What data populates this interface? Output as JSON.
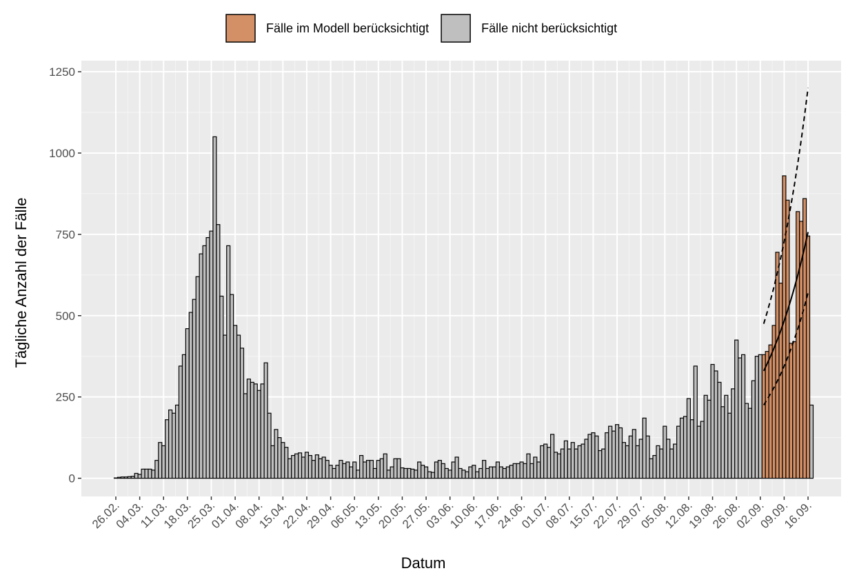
{
  "chart_data": {
    "type": "bar",
    "legend_position": "top",
    "xlabel": "Datum",
    "ylabel": "Tägliche Anzahl der Fälle",
    "grid": true,
    "ylim": [
      -56,
      1284
    ],
    "yticks": [
      0,
      250,
      500,
      750,
      1000,
      1250
    ],
    "categories": [
      "26.02.",
      null,
      null,
      null,
      null,
      null,
      null,
      "04.03.",
      null,
      null,
      null,
      null,
      null,
      null,
      "11.03.",
      null,
      null,
      null,
      null,
      null,
      null,
      "18.03.",
      null,
      null,
      null,
      null,
      null,
      null,
      "25.03.",
      null,
      null,
      null,
      null,
      null,
      null,
      "01.04.",
      null,
      null,
      null,
      null,
      null,
      null,
      "08.04.",
      null,
      null,
      null,
      null,
      null,
      null,
      "15.04.",
      null,
      null,
      null,
      null,
      null,
      null,
      "22.04.",
      null,
      null,
      null,
      null,
      null,
      null,
      "29.04.",
      null,
      null,
      null,
      null,
      null,
      null,
      "06.05.",
      null,
      null,
      null,
      null,
      null,
      null,
      "13.05.",
      null,
      null,
      null,
      null,
      null,
      null,
      "20.05.",
      null,
      null,
      null,
      null,
      null,
      null,
      "27.05.",
      null,
      null,
      null,
      null,
      null,
      null,
      "03.06.",
      null,
      null,
      null,
      null,
      null,
      null,
      "10.06.",
      null,
      null,
      null,
      null,
      null,
      null,
      "17.06.",
      null,
      null,
      null,
      null,
      null,
      null,
      "24.06.",
      null,
      null,
      null,
      null,
      null,
      null,
      "01.07.",
      null,
      null,
      null,
      null,
      null,
      null,
      "08.07.",
      null,
      null,
      null,
      null,
      null,
      null,
      "15.07.",
      null,
      null,
      null,
      null,
      null,
      null,
      "22.07.",
      null,
      null,
      null,
      null,
      null,
      null,
      "29.07.",
      null,
      null,
      null,
      null,
      null,
      null,
      "05.08.",
      null,
      null,
      null,
      null,
      null,
      null,
      "12.08.",
      null,
      null,
      null,
      null,
      null,
      null,
      "19.08.",
      null,
      null,
      null,
      null,
      null,
      null,
      "26.08.",
      null,
      null,
      null,
      null,
      null,
      null,
      "02.09.",
      null,
      null,
      null,
      null,
      null,
      null,
      "09.09.",
      null,
      null,
      null,
      null,
      null,
      null,
      "16.09.",
      null
    ],
    "series": [
      {
        "name": "Fälle im Modell berücksichtigt",
        "color": "#d38f65",
        "values": [
          null,
          null,
          null,
          null,
          null,
          null,
          null,
          null,
          null,
          null,
          null,
          null,
          null,
          null,
          null,
          null,
          null,
          null,
          null,
          null,
          null,
          null,
          null,
          null,
          null,
          null,
          null,
          null,
          null,
          null,
          null,
          null,
          null,
          null,
          null,
          null,
          null,
          null,
          null,
          null,
          null,
          null,
          null,
          null,
          null,
          null,
          null,
          null,
          null,
          null,
          null,
          null,
          null,
          null,
          null,
          null,
          null,
          null,
          null,
          null,
          null,
          null,
          null,
          null,
          null,
          null,
          null,
          null,
          null,
          null,
          null,
          null,
          null,
          null,
          null,
          null,
          null,
          null,
          null,
          null,
          null,
          null,
          null,
          null,
          null,
          null,
          null,
          null,
          null,
          null,
          null,
          null,
          null,
          null,
          null,
          null,
          null,
          null,
          null,
          null,
          null,
          null,
          null,
          null,
          null,
          null,
          null,
          null,
          null,
          null,
          null,
          null,
          null,
          null,
          null,
          null,
          null,
          null,
          null,
          null,
          null,
          null,
          null,
          null,
          null,
          null,
          null,
          null,
          null,
          null,
          null,
          null,
          null,
          null,
          null,
          null,
          null,
          null,
          null,
          null,
          null,
          null,
          null,
          null,
          null,
          null,
          null,
          null,
          null,
          null,
          null,
          null,
          null,
          null,
          null,
          null,
          null,
          null,
          null,
          null,
          null,
          null,
          null,
          null,
          null,
          null,
          null,
          null,
          null,
          null,
          null,
          null,
          null,
          null,
          null,
          null,
          null,
          null,
          null,
          null,
          null,
          null,
          null,
          null,
          null,
          null,
          null,
          null,
          null,
          null,
          380,
          390,
          410,
          470,
          695,
          600,
          930,
          855,
          415,
          420,
          820,
          790,
          860,
          745,
          null
        ]
      },
      {
        "name": "Fälle nicht berücksichtigt",
        "color": "#bfbfbf",
        "values": [
          1,
          3,
          4,
          4,
          5,
          6,
          15,
          12,
          28,
          28,
          28,
          25,
          55,
          110,
          100,
          180,
          210,
          200,
          225,
          345,
          380,
          460,
          510,
          550,
          620,
          690,
          715,
          740,
          760,
          1050,
          780,
          560,
          440,
          715,
          565,
          470,
          440,
          400,
          260,
          305,
          295,
          290,
          270,
          290,
          355,
          200,
          100,
          150,
          125,
          110,
          95,
          60,
          70,
          75,
          78,
          65,
          80,
          70,
          55,
          72,
          60,
          65,
          55,
          40,
          30,
          40,
          55,
          45,
          50,
          35,
          50,
          25,
          70,
          50,
          55,
          55,
          30,
          55,
          60,
          75,
          25,
          35,
          60,
          60,
          32,
          30,
          30,
          28,
          25,
          50,
          40,
          35,
          20,
          18,
          50,
          55,
          45,
          30,
          25,
          50,
          65,
          30,
          25,
          20,
          35,
          40,
          20,
          30,
          55,
          30,
          35,
          35,
          50,
          35,
          30,
          35,
          40,
          45,
          45,
          50,
          45,
          75,
          45,
          65,
          50,
          100,
          105,
          95,
          135,
          80,
          75,
          90,
          115,
          90,
          110,
          90,
          100,
          105,
          120,
          135,
          140,
          130,
          85,
          90,
          140,
          160,
          145,
          165,
          155,
          110,
          100,
          130,
          150,
          100,
          120,
          185,
          130,
          60,
          70,
          100,
          90,
          160,
          120,
          90,
          105,
          160,
          185,
          190,
          245,
          180,
          345,
          160,
          175,
          255,
          240,
          350,
          330,
          295,
          220,
          255,
          200,
          275,
          425,
          370,
          380,
          230,
          215,
          300,
          375,
          380,
          null,
          null,
          null,
          null,
          null,
          null,
          null,
          null,
          null,
          null,
          null,
          null,
          null,
          null,
          225
        ]
      }
    ],
    "lines": [
      {
        "style": "solid",
        "color": "#000000",
        "values": [
          null,
          null,
          null,
          null,
          null,
          null,
          null,
          null,
          null,
          null,
          null,
          null,
          null,
          null,
          null,
          null,
          null,
          null,
          null,
          null,
          null,
          null,
          null,
          null,
          null,
          null,
          null,
          null,
          null,
          null,
          null,
          null,
          null,
          null,
          null,
          null,
          null,
          null,
          null,
          null,
          null,
          null,
          null,
          null,
          null,
          null,
          null,
          null,
          null,
          null,
          null,
          null,
          null,
          null,
          null,
          null,
          null,
          null,
          null,
          null,
          null,
          null,
          null,
          null,
          null,
          null,
          null,
          null,
          null,
          null,
          null,
          null,
          null,
          null,
          null,
          null,
          null,
          null,
          null,
          null,
          null,
          null,
          null,
          null,
          null,
          null,
          null,
          null,
          null,
          null,
          null,
          null,
          null,
          null,
          null,
          null,
          null,
          null,
          null,
          null,
          null,
          null,
          null,
          null,
          null,
          null,
          null,
          null,
          null,
          null,
          null,
          null,
          null,
          null,
          null,
          null,
          null,
          null,
          null,
          null,
          null,
          null,
          null,
          null,
          null,
          null,
          null,
          null,
          null,
          null,
          null,
          null,
          null,
          null,
          null,
          null,
          null,
          null,
          null,
          null,
          null,
          null,
          null,
          null,
          null,
          null,
          null,
          null,
          null,
          null,
          null,
          null,
          null,
          null,
          null,
          null,
          null,
          null,
          null,
          null,
          null,
          null,
          null,
          null,
          null,
          null,
          null,
          null,
          null,
          null,
          null,
          null,
          null,
          null,
          null,
          null,
          null,
          null,
          null,
          null,
          null,
          null,
          null,
          null,
          null,
          null,
          null,
          null,
          null,
          null,
          330,
          352,
          375,
          400,
          426,
          454,
          484,
          516,
          550,
          586,
          625,
          666,
          710,
          757,
          null
        ]
      },
      {
        "style": "dashed",
        "color": "#000000",
        "values": [
          null,
          null,
          null,
          null,
          null,
          null,
          null,
          null,
          null,
          null,
          null,
          null,
          null,
          null,
          null,
          null,
          null,
          null,
          null,
          null,
          null,
          null,
          null,
          null,
          null,
          null,
          null,
          null,
          null,
          null,
          null,
          null,
          null,
          null,
          null,
          null,
          null,
          null,
          null,
          null,
          null,
          null,
          null,
          null,
          null,
          null,
          null,
          null,
          null,
          null,
          null,
          null,
          null,
          null,
          null,
          null,
          null,
          null,
          null,
          null,
          null,
          null,
          null,
          null,
          null,
          null,
          null,
          null,
          null,
          null,
          null,
          null,
          null,
          null,
          null,
          null,
          null,
          null,
          null,
          null,
          null,
          null,
          null,
          null,
          null,
          null,
          null,
          null,
          null,
          null,
          null,
          null,
          null,
          null,
          null,
          null,
          null,
          null,
          null,
          null,
          null,
          null,
          null,
          null,
          null,
          null,
          null,
          null,
          null,
          null,
          null,
          null,
          null,
          null,
          null,
          null,
          null,
          null,
          null,
          null,
          null,
          null,
          null,
          null,
          null,
          null,
          null,
          null,
          null,
          null,
          null,
          null,
          null,
          null,
          null,
          null,
          null,
          null,
          null,
          null,
          null,
          null,
          null,
          null,
          null,
          null,
          null,
          null,
          null,
          null,
          null,
          null,
          null,
          null,
          null,
          null,
          null,
          null,
          null,
          null,
          null,
          null,
          null,
          null,
          null,
          null,
          null,
          null,
          null,
          null,
          null,
          null,
          null,
          null,
          null,
          null,
          null,
          null,
          null,
          null,
          null,
          null,
          null,
          null,
          null,
          null,
          null,
          null,
          null,
          null,
          475,
          510,
          548,
          588,
          632,
          678,
          728,
          782,
          840,
          902,
          969,
          1040,
          1117,
          1200,
          null
        ]
      },
      {
        "style": "dashed",
        "color": "#000000",
        "values": [
          null,
          null,
          null,
          null,
          null,
          null,
          null,
          null,
          null,
          null,
          null,
          null,
          null,
          null,
          null,
          null,
          null,
          null,
          null,
          null,
          null,
          null,
          null,
          null,
          null,
          null,
          null,
          null,
          null,
          null,
          null,
          null,
          null,
          null,
          null,
          null,
          null,
          null,
          null,
          null,
          null,
          null,
          null,
          null,
          null,
          null,
          null,
          null,
          null,
          null,
          null,
          null,
          null,
          null,
          null,
          null,
          null,
          null,
          null,
          null,
          null,
          null,
          null,
          null,
          null,
          null,
          null,
          null,
          null,
          null,
          null,
          null,
          null,
          null,
          null,
          null,
          null,
          null,
          null,
          null,
          null,
          null,
          null,
          null,
          null,
          null,
          null,
          null,
          null,
          null,
          null,
          null,
          null,
          null,
          null,
          null,
          null,
          null,
          null,
          null,
          null,
          null,
          null,
          null,
          null,
          null,
          null,
          null,
          null,
          null,
          null,
          null,
          null,
          null,
          null,
          null,
          null,
          null,
          null,
          null,
          null,
          null,
          null,
          null,
          null,
          null,
          null,
          null,
          null,
          null,
          null,
          null,
          null,
          null,
          null,
          null,
          null,
          null,
          null,
          null,
          null,
          null,
          null,
          null,
          null,
          null,
          null,
          null,
          null,
          null,
          null,
          null,
          null,
          null,
          null,
          null,
          null,
          null,
          null,
          null,
          null,
          null,
          null,
          null,
          null,
          null,
          null,
          null,
          null,
          null,
          null,
          null,
          null,
          null,
          null,
          null,
          null,
          null,
          null,
          null,
          null,
          null,
          null,
          null,
          null,
          null,
          null,
          null,
          null,
          null,
          225,
          242,
          260,
          279,
          299,
          321,
          345,
          371,
          398,
          428,
          459,
          493,
          530,
          570,
          null
        ]
      }
    ]
  }
}
